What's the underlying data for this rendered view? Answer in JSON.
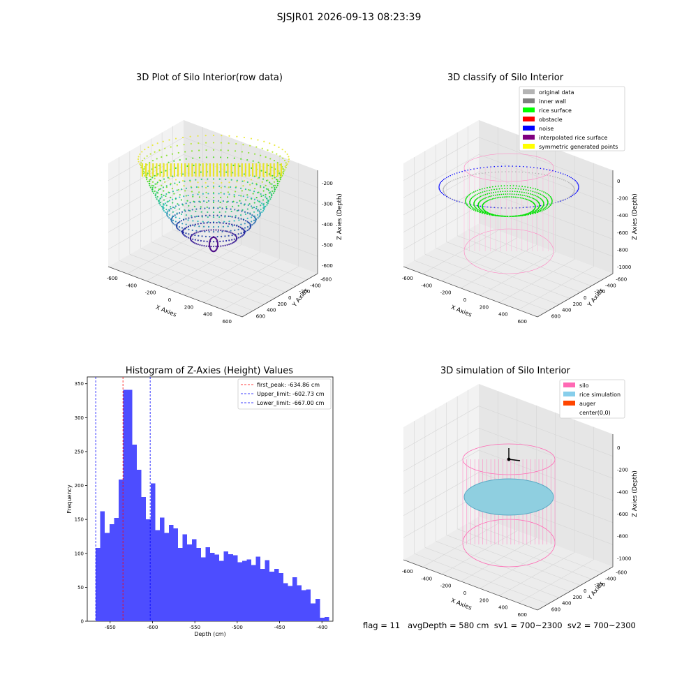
{
  "suptitle": "SJSJR01 2026-09-13 08:23:39",
  "panels": {
    "raw": {
      "title": "3D Plot of Silo Interior(row data)",
      "xlabel": "X Axies",
      "ylabel": "Y Axies",
      "zlabel": "Z Axies (Depth)",
      "xticks": [
        "-600",
        "-400",
        "-200",
        "0",
        "200",
        "400",
        "600"
      ],
      "yticks": [
        "600",
        "400",
        "200",
        "0",
        "-200",
        "-400",
        "-600"
      ],
      "zticks": [
        "-200",
        "-300",
        "-400",
        "-500",
        "-600"
      ]
    },
    "classify": {
      "title": "3D classify of Silo Interior",
      "xlabel": "X Axies",
      "ylabel": "Y Axies",
      "zlabel": "Z Axies (Depth)",
      "xticks": [
        "-600",
        "-400",
        "-200",
        "0",
        "200",
        "400",
        "600"
      ],
      "yticks": [
        "600",
        "400",
        "200",
        "0",
        "-200",
        "-400",
        "-600"
      ],
      "zticks": [
        "0",
        "-200",
        "-400",
        "-600",
        "-800",
        "-1000"
      ],
      "legend": [
        {
          "label": "original data",
          "color": "#b4b4b4"
        },
        {
          "label": "inner wall",
          "color": "#808080"
        },
        {
          "label": "rice surface",
          "color": "#00ff00"
        },
        {
          "label": "obstacle",
          "color": "#ff0000"
        },
        {
          "label": "noise",
          "color": "#0000ff"
        },
        {
          "label": "interpolated rice surface",
          "color": "#800080"
        },
        {
          "label": "symmetric generated points",
          "color": "#ffff00"
        }
      ]
    },
    "simulation": {
      "title": "3D simulation of Silo Interior",
      "xlabel": "X Axies",
      "ylabel": "Y Axies",
      "zlabel": "Z Axies (Depth)",
      "xticks": [
        "-600",
        "-400",
        "-200",
        "0",
        "200",
        "400",
        "600"
      ],
      "yticks": [
        "600",
        "400",
        "200",
        "0",
        "-200",
        "-400",
        "-600"
      ],
      "zticks": [
        "0",
        "-200",
        "-400",
        "-600",
        "-800",
        "-1000"
      ],
      "legend": [
        {
          "label": "silo",
          "color": "#ff69b4"
        },
        {
          "label": "rice simulation",
          "color": "#87ceeb"
        },
        {
          "label": "auger",
          "color": "#ff4500"
        },
        {
          "label": "center(0,0)",
          "color": "#ffffff"
        }
      ]
    }
  },
  "chart_data": {
    "type": "bar",
    "title": "Histogram of Z-Axies (Height) Values",
    "xlabel": "Depth (cm)",
    "ylabel": "Frequency",
    "xlim": [
      -677,
      -387
    ],
    "ylim": [
      0,
      360
    ],
    "xticks": [
      -650,
      -600,
      -550,
      -500,
      -450,
      -400
    ],
    "yticks": [
      0,
      50,
      100,
      150,
      200,
      250,
      300,
      350
    ],
    "bin_start": -667,
    "bin_width": 5.4,
    "color": "#4d4dff",
    "counts": [
      108,
      162,
      130,
      143,
      152,
      209,
      341,
      341,
      260,
      223,
      183,
      150,
      203,
      134,
      153,
      130,
      142,
      137,
      108,
      128,
      113,
      121,
      108,
      94,
      109,
      101,
      98,
      89,
      103,
      99,
      97,
      87,
      89,
      91,
      83,
      95,
      77,
      90,
      73,
      77,
      71,
      56,
      52,
      65,
      53,
      46,
      47,
      26,
      33,
      5,
      6
    ],
    "lines": [
      {
        "label": "first_peak: -634.86 cm",
        "x": -634.86,
        "color": "#ff0000"
      },
      {
        "label": "Upper_limit: -602.73 cm",
        "x": -602.73,
        "color": "#0000ff"
      },
      {
        "label": "Lower_limit: -667.00 cm",
        "x": -667.0,
        "color": "#0000ff"
      }
    ],
    "legend_position": "upper right"
  },
  "footer": "flag = 11   avgDepth = 580 cm  sv1 = 700~2300  sv2 = 700~2300"
}
